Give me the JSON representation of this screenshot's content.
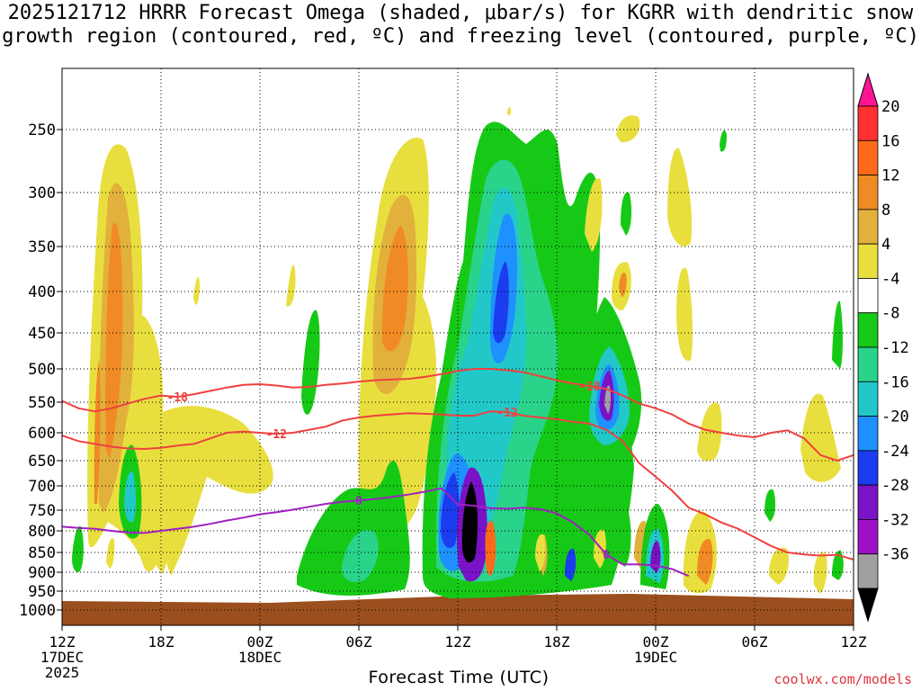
{
  "title": {
    "line1": "2025121712 HRRR Forecast Omega (shaded, μbar/s) for KGRR with dendritic snow",
    "line2": "growth region (contoured, red, ºC) and freezing level (contoured, purple, ºC)"
  },
  "x_axis_title": "Forecast Time (UTC)",
  "credit": "coolwx.com/models",
  "chart_data": {
    "type": "heatmap",
    "xlabel": "Forecast Time (UTC)",
    "ylabel": "Pressure (mb)",
    "x_range_hours": [
      0,
      48
    ],
    "x_ticks": [
      {
        "hour": 0,
        "label": "12Z",
        "label2": "17DEC",
        "label3": "2025"
      },
      {
        "hour": 6,
        "label": "18Z"
      },
      {
        "hour": 12,
        "label": "00Z",
        "label2": "18DEC"
      },
      {
        "hour": 18,
        "label": "06Z"
      },
      {
        "hour": 24,
        "label": "12Z"
      },
      {
        "hour": 30,
        "label": "18Z"
      },
      {
        "hour": 36,
        "label": "00Z",
        "label2": "19DEC"
      },
      {
        "hour": 42,
        "label": "06Z"
      },
      {
        "hour": 48,
        "label": "12Z"
      }
    ],
    "y_ticks": [
      "250",
      "300",
      "350",
      "400",
      "450",
      "500",
      "550",
      "600",
      "650",
      "700",
      "750",
      "800",
      "850",
      "900",
      "950",
      "1000"
    ],
    "y_values": [
      250,
      300,
      350,
      400,
      450,
      500,
      550,
      600,
      650,
      700,
      750,
      800,
      850,
      900,
      950,
      1000
    ],
    "colorbar": {
      "labels": [
        "20",
        "16",
        "12",
        "8",
        "4",
        "-4",
        "-8",
        "-12",
        "-16",
        "-20",
        "-24",
        "-28",
        "-32",
        "-36"
      ],
      "colors": [
        "#ff1493",
        "#ff3030",
        "#ff6a1a",
        "#f08a24",
        "#e2b13c",
        "#e8df3e",
        "#ffffff",
        "#17c917",
        "#2ad38a",
        "#22c8c8",
        "#1e90ff",
        "#1c3cf0",
        "#7a12c8",
        "#a010c8",
        "#a0a0a0",
        "#000000"
      ]
    },
    "red_contours": [
      {
        "label": "-18",
        "points": [
          [
            0,
            548
          ],
          [
            1,
            560
          ],
          [
            2,
            565
          ],
          [
            3,
            560
          ],
          [
            4,
            552
          ],
          [
            5,
            545
          ],
          [
            6,
            540
          ],
          [
            7,
            542
          ],
          [
            8,
            538
          ],
          [
            9,
            533
          ],
          [
            10,
            528
          ],
          [
            11,
            524
          ],
          [
            12,
            523
          ],
          [
            13,
            525
          ],
          [
            14,
            528
          ],
          [
            15,
            527
          ],
          [
            16,
            524
          ],
          [
            17,
            522
          ],
          [
            18,
            519
          ],
          [
            19,
            517
          ],
          [
            20,
            516
          ],
          [
            21,
            515
          ],
          [
            22,
            512
          ],
          [
            23,
            508
          ],
          [
            24,
            503
          ],
          [
            25,
            500
          ],
          [
            26,
            500
          ],
          [
            27,
            502
          ],
          [
            28,
            505
          ],
          [
            29,
            511
          ],
          [
            30,
            517
          ],
          [
            31,
            522
          ],
          [
            32,
            526
          ],
          [
            33,
            530
          ],
          [
            34,
            540
          ],
          [
            35,
            552
          ],
          [
            36,
            560
          ],
          [
            37,
            570
          ],
          [
            38,
            585
          ],
          [
            39,
            595
          ],
          [
            40,
            600
          ],
          [
            41,
            605
          ],
          [
            42,
            608
          ],
          [
            43,
            600
          ],
          [
            44,
            596
          ],
          [
            45,
            610
          ],
          [
            46,
            640
          ],
          [
            47,
            650
          ],
          [
            48,
            640
          ]
        ]
      },
      {
        "label": "-12",
        "points": [
          [
            0,
            605
          ],
          [
            1,
            615
          ],
          [
            2,
            620
          ],
          [
            3,
            625
          ],
          [
            4,
            628
          ],
          [
            5,
            629
          ],
          [
            6,
            627
          ],
          [
            7,
            623
          ],
          [
            8,
            620
          ],
          [
            9,
            610
          ],
          [
            10,
            600
          ],
          [
            11,
            598
          ],
          [
            12,
            600
          ],
          [
            13,
            602
          ],
          [
            14,
            600
          ],
          [
            15,
            595
          ],
          [
            16,
            590
          ],
          [
            17,
            580
          ],
          [
            18,
            575
          ],
          [
            19,
            572
          ],
          [
            20,
            570
          ],
          [
            21,
            568
          ],
          [
            22,
            569
          ],
          [
            23,
            570
          ],
          [
            24,
            572
          ],
          [
            25,
            572
          ],
          [
            26,
            565
          ],
          [
            27,
            566
          ],
          [
            28,
            572
          ],
          [
            29,
            575
          ],
          [
            30,
            578
          ],
          [
            31,
            582
          ],
          [
            32,
            585
          ],
          [
            33,
            595
          ],
          [
            34,
            615
          ],
          [
            35,
            655
          ],
          [
            36,
            682
          ],
          [
            37,
            710
          ],
          [
            38,
            745
          ],
          [
            39,
            760
          ],
          [
            40,
            780
          ],
          [
            41,
            795
          ],
          [
            42,
            815
          ],
          [
            43,
            835
          ],
          [
            44,
            850
          ],
          [
            45,
            855
          ],
          [
            46,
            858
          ],
          [
            47,
            856
          ],
          [
            48,
            868
          ]
        ]
      }
    ],
    "purple_contours": [
      {
        "label": "0",
        "points": [
          [
            0,
            790
          ],
          [
            1,
            793
          ],
          [
            2,
            795
          ],
          [
            3,
            800
          ],
          [
            4,
            804
          ],
          [
            5,
            805
          ],
          [
            6,
            800
          ],
          [
            7,
            795
          ],
          [
            8,
            790
          ],
          [
            9,
            783
          ],
          [
            10,
            775
          ],
          [
            11,
            768
          ],
          [
            12,
            760
          ],
          [
            13,
            755
          ],
          [
            14,
            749
          ],
          [
            15,
            743
          ],
          [
            16,
            737
          ],
          [
            17,
            733
          ],
          [
            18,
            730
          ],
          [
            19,
            727
          ],
          [
            20,
            723
          ],
          [
            21,
            718
          ],
          [
            22,
            712
          ],
          [
            23,
            705
          ],
          [
            24,
            738
          ],
          [
            25,
            741
          ],
          [
            26,
            746
          ],
          [
            27,
            747
          ],
          [
            28,
            745
          ],
          [
            29,
            748
          ],
          [
            30,
            758
          ],
          [
            31,
            780
          ],
          [
            32,
            810
          ],
          [
            33,
            855
          ],
          [
            34,
            880
          ],
          [
            35,
            880
          ],
          [
            36,
            883
          ],
          [
            37,
            892
          ],
          [
            38,
            910
          ]
        ]
      }
    ]
  }
}
